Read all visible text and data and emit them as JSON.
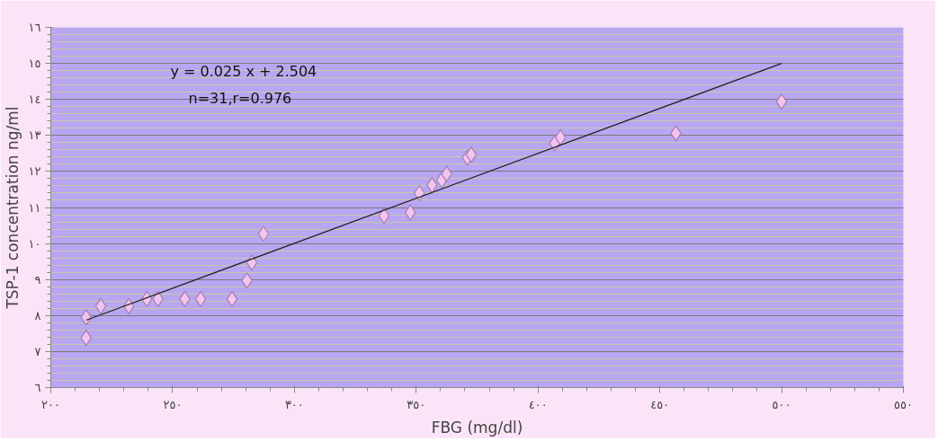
{
  "chart_data": {
    "type": "scatter",
    "xlabel": "FBG (mg/dl)",
    "ylabel": "TSP-1 concentration ng/ml",
    "annotations": [
      "y = 0.025 x + 2.504",
      "n=31,r=0.976"
    ],
    "xlim": [
      200,
      550
    ],
    "ylim": [
      6,
      16
    ],
    "xticks": [
      {
        "value": 200,
        "label": "٢٠٠"
      },
      {
        "value": 250,
        "label": "٢٥٠"
      },
      {
        "value": 300,
        "label": "٣٠٠"
      },
      {
        "value": 350,
        "label": "٣٥٠"
      },
      {
        "value": 400,
        "label": "٤٠٠"
      },
      {
        "value": 450,
        "label": "٤٥٠"
      },
      {
        "value": 500,
        "label": "٥٠٠"
      },
      {
        "value": 550,
        "label": "٥٥٠"
      }
    ],
    "yticks": [
      {
        "value": 6,
        "label": "٦"
      },
      {
        "value": 7,
        "label": "٧"
      },
      {
        "value": 8,
        "label": "٨"
      },
      {
        "value": 9,
        "label": "٩"
      },
      {
        "value": 10,
        "label": "١٠"
      },
      {
        "value": 11,
        "label": "١١"
      },
      {
        "value": 12,
        "label": "١٢"
      },
      {
        "value": 13,
        "label": "١٣"
      },
      {
        "value": 14,
        "label": "١٤"
      },
      {
        "value": 15,
        "label": "١٥"
      },
      {
        "value": 16,
        "label": "١٦"
      }
    ],
    "grid": "y",
    "series": [
      {
        "marker": "diamond",
        "color": "#f4c4f0",
        "x": [
          214.5,
          214.5,
          220.5,
          232,
          239.4,
          244,
          255,
          261.5,
          274.4,
          280.5,
          282.5,
          287.3,
          336.8,
          347.6,
          351.3,
          356.5,
          360.5,
          362.5,
          371,
          372.6,
          406.8,
          409.2,
          456.6,
          500
        ],
        "values": [
          7.95,
          7.38,
          8.26,
          8.26,
          8.46,
          8.46,
          8.46,
          8.46,
          8.46,
          8.97,
          9.47,
          10.27,
          10.77,
          10.86,
          11.4,
          11.62,
          11.76,
          11.93,
          12.38,
          12.47,
          12.78,
          12.95,
          13.06,
          13.94
        ]
      },
      {
        "type": "line",
        "marker": "none",
        "color": "#222222",
        "x": [
          214.5,
          500
        ],
        "values": [
          7.87,
          15.0
        ]
      }
    ]
  }
}
